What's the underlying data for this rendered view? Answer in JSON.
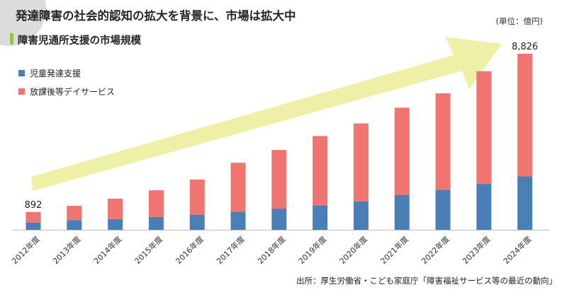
{
  "headline": "発達障害の社会的認知の拡大を背景に、市場は拡大中",
  "unit": "(単位：億円)",
  "source": "出所：厚生労働省・こども家庭庁「障害福祉サービス等の最近の動向」",
  "colors": {
    "series1": "#4a7fb5",
    "series2": "#f07470",
    "arrow": "#eef0a8",
    "accent": "#9bc34a"
  },
  "chart_data": {
    "type": "bar",
    "stacked": true,
    "title": "障害児通所支援の市場規模",
    "categories": [
      "2012年度",
      "2013年度",
      "2014年度",
      "2015年度",
      "2016年度",
      "2017年度",
      "2018年度",
      "2019年度",
      "2020年度",
      "2021年度",
      "2022年度",
      "2023年度",
      "2024年度"
    ],
    "series": [
      {
        "name": "児童発達支援",
        "values": [
          365,
          488,
          538,
          640,
          760,
          900,
          1060,
          1230,
          1430,
          1750,
          2000,
          2300,
          2680
        ]
      },
      {
        "name": "放課後等デイサービス",
        "values": [
          527,
          712,
          1022,
          1340,
          1760,
          2460,
          2940,
          3470,
          3900,
          4370,
          4840,
          5650,
          6146
        ]
      }
    ],
    "data_labels": [
      {
        "category": "2012年度",
        "text": "892"
      },
      {
        "category": "2024年度",
        "text": "8,826"
      }
    ],
    "ylim": [
      0,
      9000
    ],
    "grid": false,
    "legend_position": "top-left",
    "annotation": "upward trend arrow"
  }
}
